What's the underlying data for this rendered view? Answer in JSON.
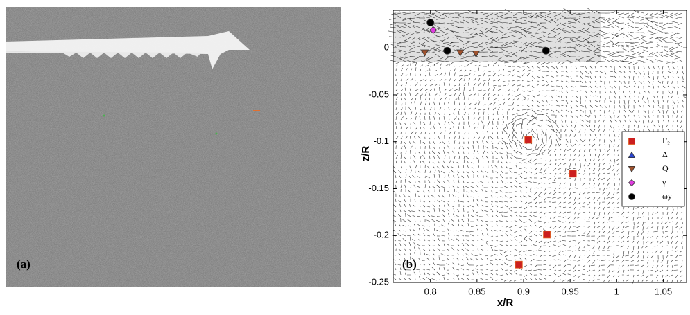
{
  "panel_a": {
    "label": "(a)"
  },
  "chart_data": {
    "type": "scatter",
    "panel_label": "(b)",
    "x_label": "x/R",
    "y_label": "z/R",
    "xlim": [
      0.76,
      1.075
    ],
    "ylim": [
      -0.25,
      0.04
    ],
    "xticks": [
      0.8,
      0.85,
      0.9,
      0.95,
      1,
      1.05
    ],
    "yticks": [
      0,
      -0.05,
      -0.1,
      -0.15,
      -0.2,
      -0.25
    ],
    "legend_position": "right",
    "series": [
      {
        "name": "Γ₂",
        "color": "#cc1f1f",
        "marker": "square",
        "x": [
          0.905,
          0.953,
          0.925,
          0.895
        ],
        "y": [
          -0.098,
          -0.134,
          -0.199,
          -0.231
        ]
      },
      {
        "name": "Δ",
        "color": "#2a45d0",
        "marker": "triangle-up",
        "x": [],
        "y": []
      },
      {
        "name": "Q",
        "color": "#a0522d",
        "marker": "triangle-down",
        "x": [
          0.794,
          0.832,
          0.849
        ],
        "y": [
          -0.005,
          -0.005,
          -0.006
        ]
      },
      {
        "name": "γ",
        "color": "#e03ce0",
        "marker": "diamond",
        "x": [
          0.803
        ],
        "y": [
          0.019
        ]
      },
      {
        "name": "ωy",
        "color": "#000000",
        "marker": "circle",
        "x": [
          0.8,
          0.818,
          0.924
        ],
        "y": [
          0.027,
          -0.003,
          -0.003
        ]
      }
    ]
  }
}
